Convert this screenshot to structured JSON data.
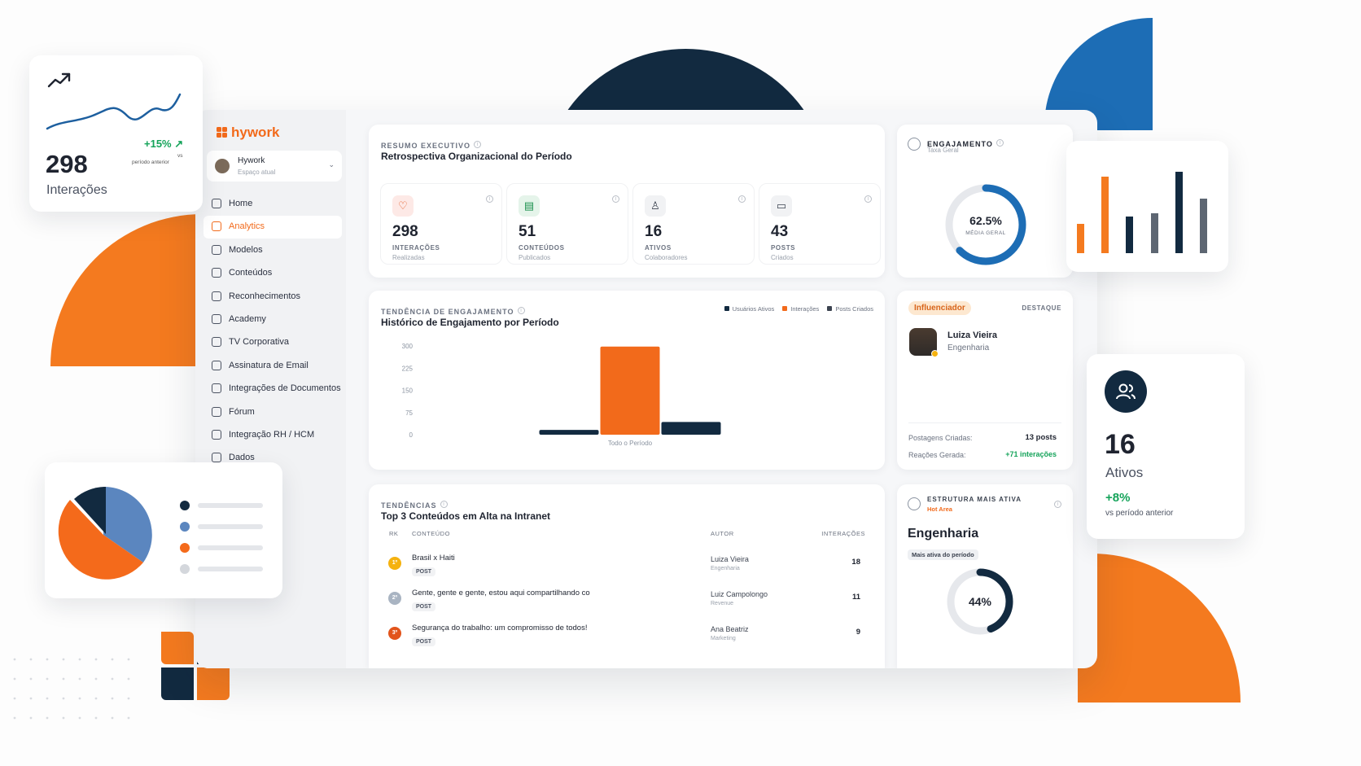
{
  "brand": {
    "name": "hywork",
    "accent": "#f26a1b",
    "navy": "#122a40",
    "blue": "#1d6db5"
  },
  "float_interactions": {
    "value": "298",
    "label": "Interações",
    "delta": "+15%",
    "delta_sub1": "vs",
    "delta_sub2": "período anterior"
  },
  "float_ativos": {
    "value": "16",
    "label": "Ativos",
    "delta": "+8%",
    "delta_sub": "vs período anterior"
  },
  "workspace": {
    "name": "Hywork",
    "sub": "Espaço atual"
  },
  "sidebar": {
    "items": [
      {
        "label": "Home",
        "icon": "home-icon"
      },
      {
        "label": "Analytics",
        "icon": "bar-chart-icon"
      },
      {
        "label": "Modelos",
        "icon": "template-icon"
      },
      {
        "label": "Conteúdos",
        "icon": "document-icon"
      },
      {
        "label": "Reconhecimentos",
        "icon": "award-icon"
      },
      {
        "label": "Academy",
        "icon": "cap-icon"
      },
      {
        "label": "TV Corporativa",
        "icon": "tv-icon"
      },
      {
        "label": "Assinatura de Email",
        "icon": "mail-icon"
      },
      {
        "label": "Integrações de Documentos",
        "icon": "link-icon"
      },
      {
        "label": "Fórum",
        "icon": "chat-icon"
      },
      {
        "label": "Integração RH / HCM",
        "icon": "people-icon"
      },
      {
        "label": "Dados",
        "icon": "database-icon"
      }
    ]
  },
  "summary": {
    "kicker": "RESUMO EXECUTIVO",
    "title": "Retrospectiva Organizacional do Período",
    "stats": [
      {
        "value": "298",
        "label": "INTERAÇÕES",
        "sub": "Realizadas",
        "icon": "heart-icon"
      },
      {
        "value": "51",
        "label": "CONTEÚDOS",
        "sub": "Publicados",
        "icon": "file-icon"
      },
      {
        "value": "16",
        "label": "ATIVOS",
        "sub": "Colaboradores",
        "icon": "user-icon"
      },
      {
        "value": "43",
        "label": "POSTS",
        "sub": "Criados",
        "icon": "message-icon"
      }
    ]
  },
  "engagement": {
    "kicker": "ENGAJAMENTO",
    "sub": "Taxa Geral",
    "value": "62.5%",
    "value_label": "MÉDIA GERAL",
    "percent": 62.5
  },
  "trend": {
    "kicker": "TENDÊNCIA DE ENGAJAMENTO",
    "title": "Histórico de Engajamento por Período",
    "legend": [
      "Usuários Ativos",
      "Interações",
      "Posts Criados"
    ]
  },
  "chart_data": {
    "type": "bar",
    "categories": [
      "Todo o Período"
    ],
    "series": [
      {
        "name": "Usuários Ativos",
        "values": [
          16
        ],
        "color": "#122a40"
      },
      {
        "name": "Interações",
        "values": [
          298
        ],
        "color": "#f26a1b"
      },
      {
        "name": "Posts Criados",
        "values": [
          43
        ],
        "color": "#122a40"
      }
    ],
    "yticks": [
      "300",
      "225",
      "150",
      "75",
      "0"
    ],
    "ylim": [
      0,
      300
    ]
  },
  "influencer": {
    "badge": "Influenciador",
    "tag": "DESTAQUE",
    "name": "Luiza Vieira",
    "dept": "Engenharia",
    "posts_label": "Postagens Criadas:",
    "posts_value": "13 posts",
    "reactions_label": "Reações Gerada:",
    "reactions_value": "+71 interações"
  },
  "top": {
    "kicker": "TENDÊNCIAS",
    "title": "Top 3 Conteúdos em Alta na Intranet",
    "headers": {
      "rk": "RK",
      "content": "CONTEÚDO",
      "author": "AUTOR",
      "interactions": "INTERAÇÕES"
    },
    "rows": [
      {
        "rank": "1º",
        "title": "Brasil x Haiti",
        "tag": "POST",
        "author": "Luiza Vieira",
        "dept": "Engenharia",
        "count": "18",
        "color": "#f5b20f"
      },
      {
        "rank": "2º",
        "title": "Gente, gente e gente, estou aqui compartilhando co",
        "tag": "POST",
        "author": "Luiz Campolongo",
        "dept": "Revenue",
        "count": "11",
        "color": "#a9b4c2"
      },
      {
        "rank": "3º",
        "title": "Segurança do trabalho: um compromisso de todos!",
        "tag": "POST",
        "author": "Ana Beatriz",
        "dept": "Marketing",
        "count": "9",
        "color": "#e2541b"
      }
    ]
  },
  "structure": {
    "kicker": "ESTRUTURA MAIS ATIVA",
    "sub": "Hot Area",
    "name": "Engenharia",
    "badge": "Mais ativa do período",
    "value": "44%",
    "percent": 44
  }
}
